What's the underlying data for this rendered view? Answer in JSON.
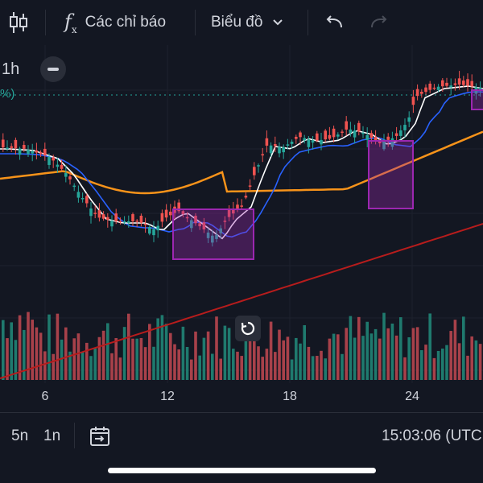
{
  "toolbar": {
    "indicators_label": "Các chỉ báo",
    "chart_type_label": "Biểu đồ"
  },
  "legend": {
    "interval": "1h",
    "percent_fragment": "%)"
  },
  "xaxis": {
    "ticks": [
      {
        "label": "6",
        "x": 56
      },
      {
        "label": "12",
        "x": 208
      },
      {
        "label": "18",
        "x": 360
      },
      {
        "label": "24",
        "x": 512
      }
    ]
  },
  "bottom": {
    "range_5d": "5n",
    "range_1d": "1n",
    "time": "15:03:06 (UTC"
  },
  "colors": {
    "up": "#26a69a",
    "down": "#ef5350",
    "ema_white": "#ffffff",
    "ema_blue": "#2962ff",
    "ema_orange": "#f7931a",
    "ema_red": "#b71c1c",
    "highlight": "#9c27b0"
  },
  "chart_data": {
    "type": "candlestick",
    "x_ticks": [
      "6",
      "12",
      "18",
      "24"
    ],
    "indicators": [
      "white moving average",
      "blue moving average",
      "orange moving average",
      "red moving average"
    ],
    "highlight_boxes": 3,
    "grid": true
  }
}
